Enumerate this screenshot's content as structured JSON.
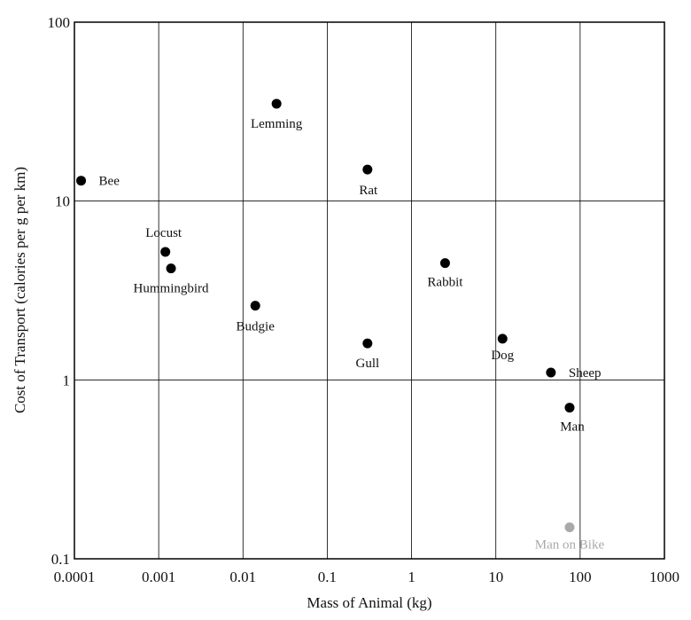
{
  "chart_data": {
    "type": "scatter",
    "title": "",
    "xlabel": "Mass of Animal (kg)",
    "ylabel": "Cost of Transport (calories per g per km)",
    "xscale": "log",
    "yscale": "log",
    "xlim": [
      0.0001,
      1000
    ],
    "ylim": [
      0.1,
      100
    ],
    "grid": true,
    "legend": "none",
    "x_ticks": [
      "0.0001",
      "0.001",
      "0.01",
      "0.1",
      "1",
      "10",
      "100",
      "1000"
    ],
    "y_ticks": [
      "0.1",
      "1",
      "10",
      "100"
    ],
    "colors": {
      "point": "#000000",
      "highlight": "#a9a9a9"
    },
    "points": [
      {
        "name": "Bee",
        "x": 0.00012,
        "y": 13,
        "highlight": false
      },
      {
        "name": "Locust",
        "x": 0.0012,
        "y": 5.2,
        "highlight": false
      },
      {
        "name": "Hummingbird",
        "x": 0.0014,
        "y": 4.2,
        "highlight": false
      },
      {
        "name": "Budgie",
        "x": 0.014,
        "y": 2.6,
        "highlight": false
      },
      {
        "name": "Lemming",
        "x": 0.025,
        "y": 35,
        "highlight": false
      },
      {
        "name": "Rat",
        "x": 0.3,
        "y": 15,
        "highlight": false
      },
      {
        "name": "Gull",
        "x": 0.3,
        "y": 1.6,
        "highlight": false
      },
      {
        "name": "Rabbit",
        "x": 2.5,
        "y": 4.5,
        "highlight": false
      },
      {
        "name": "Dog",
        "x": 12,
        "y": 1.7,
        "highlight": false
      },
      {
        "name": "Sheep",
        "x": 45,
        "y": 1.1,
        "highlight": false
      },
      {
        "name": "Man",
        "x": 75,
        "y": 0.7,
        "highlight": false
      },
      {
        "name": "Man on Bike",
        "x": 75,
        "y": 0.15,
        "highlight": true
      }
    ]
  }
}
